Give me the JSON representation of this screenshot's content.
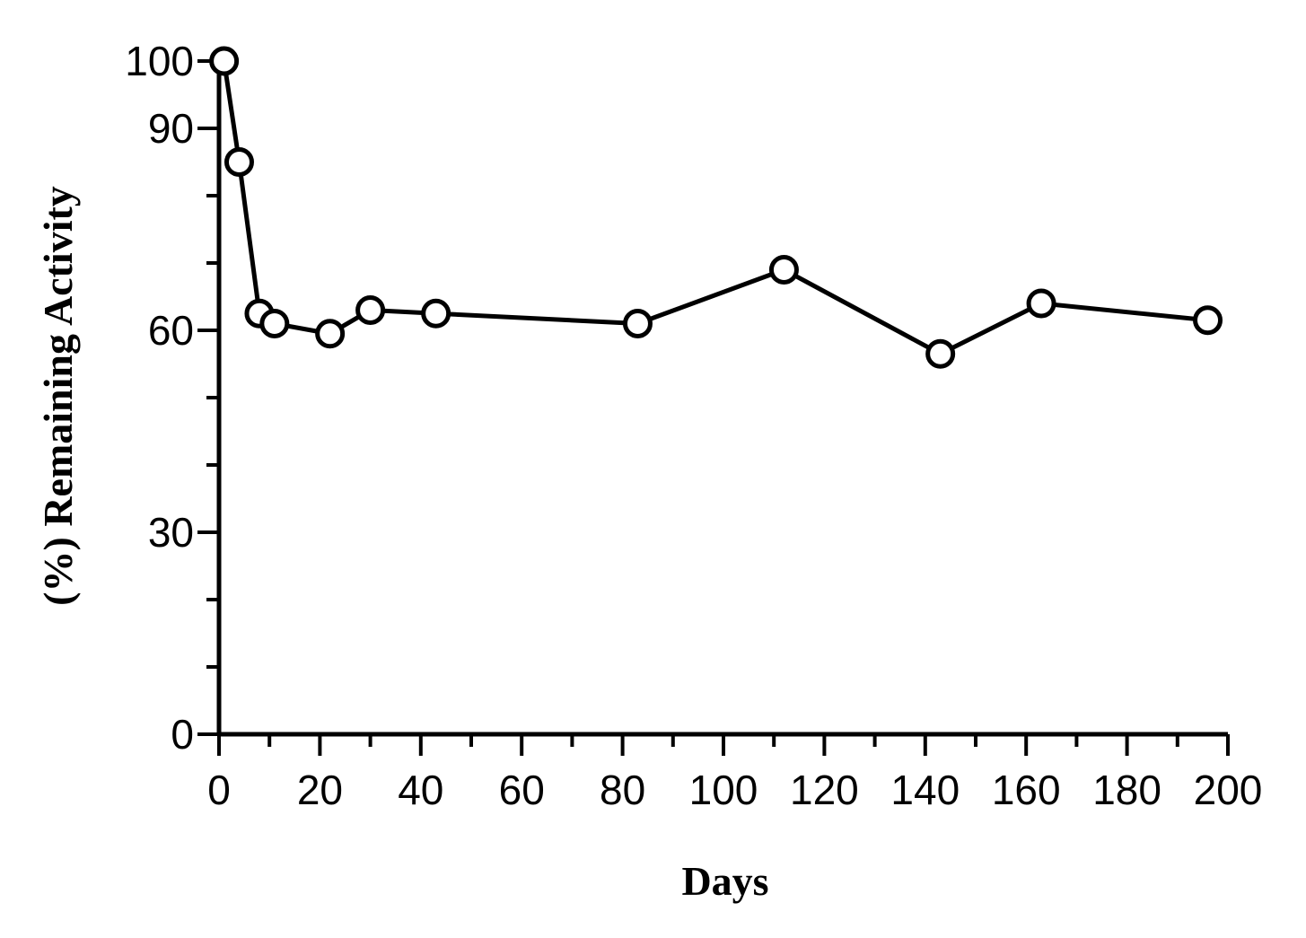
{
  "chart_data": {
    "type": "line",
    "title": "",
    "xlabel": "Days",
    "ylabel": "(%) Remaining Activity",
    "xlim": [
      0,
      200
    ],
    "ylim": [
      0,
      100
    ],
    "x_ticks": [
      0,
      20,
      40,
      60,
      80,
      100,
      120,
      140,
      160,
      180,
      200
    ],
    "x_minor_ticks": [
      10,
      30,
      50,
      70,
      90,
      110,
      130,
      150,
      170,
      190
    ],
    "y_ticks": [
      0,
      30,
      60,
      90,
      100
    ],
    "y_minor_ticks": [
      10,
      20,
      40,
      50,
      70,
      80
    ],
    "grid": false,
    "legend": "none",
    "marker": "open-circle",
    "line_color": "#000000",
    "series": [
      {
        "x": [
          1,
          4,
          8,
          11,
          22,
          30,
          43,
          83,
          112,
          143,
          163,
          196
        ],
        "y": [
          100,
          85,
          62.5,
          61,
          59.5,
          63,
          62.5,
          61,
          69,
          56.5,
          64,
          61.5
        ]
      }
    ]
  }
}
